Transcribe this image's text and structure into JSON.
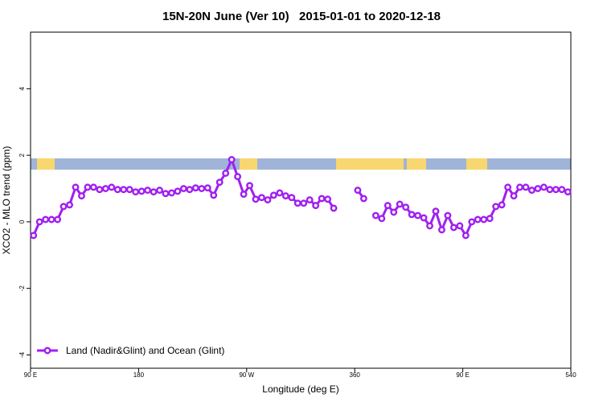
{
  "chart_data": {
    "type": "line",
    "title": "15N-20N June (Ver 10)   2015-01-01 to 2020-12-18",
    "x_label": "Longitude (deg E)",
    "y_label": "XCO2 - MLO trend (ppm)",
    "x": [
      92.5,
      97.5,
      102.5,
      107.5,
      112.5,
      117.5,
      122.5,
      127.5,
      132.5,
      137.5,
      142.5,
      147.5,
      152.5,
      157.5,
      162.5,
      167.5,
      172.5,
      177.5,
      182.5,
      187.5,
      192.5,
      197.5,
      202.5,
      207.5,
      212.5,
      217.5,
      222.5,
      227.5,
      232.5,
      237.5,
      242.5,
      247.5,
      252.5,
      257.5,
      262.5,
      267.5,
      272.5,
      277.5,
      282.5,
      287.5,
      292.5,
      297.5,
      302.5,
      307.5,
      312.5,
      317.5,
      322.5,
      327.5,
      332.5,
      337.5,
      342.5,
      347.5,
      352.5,
      357.5,
      362.5,
      367.5,
      372.5,
      377.5,
      382.5,
      387.5,
      392.5,
      397.5,
      402.5,
      407.5,
      412.5,
      417.5,
      422.5,
      427.5,
      432.5,
      437.5,
      442.5,
      447.5,
      452.5,
      457.5,
      462.5,
      467.5,
      472.5,
      477.5,
      482.5,
      487.5,
      492.5,
      497.5,
      502.5,
      507.5,
      512.5,
      517.5,
      522.5,
      527.5,
      532.5,
      537.5
    ],
    "series": [
      {
        "name": "Land (Nadir&Glint) and Ocean (Glint)",
        "color": "#a020f0",
        "values": [
          -0.41,
          0,
          0.07,
          0.07,
          0.07,
          0.46,
          0.51,
          1.04,
          0.78,
          1.04,
          1.04,
          0.97,
          1.0,
          1.04,
          0.97,
          0.97,
          0.97,
          0.9,
          0.92,
          0.95,
          0.9,
          0.95,
          0.85,
          0.87,
          0.92,
          1.0,
          0.97,
          1.02,
          1.0,
          1.02,
          0.8,
          1.19,
          1.46,
          1.87,
          1.36,
          0.83,
          1.09,
          0.68,
          0.73,
          0.66,
          0.8,
          0.87,
          0.78,
          0.73,
          0.56,
          0.56,
          0.66,
          0.49,
          0.7,
          0.68,
          0.41,
          null,
          null,
          null,
          0.95,
          0.7,
          null,
          0.19,
          0.1,
          0.49,
          0.29,
          0.53,
          0.44,
          0.22,
          0.19,
          0.12,
          -0.12,
          0.32,
          -0.24,
          0.19,
          -0.17,
          -0.12,
          -0.41,
          0,
          0.07,
          0.07,
          0.1,
          0.46,
          0.51,
          1.04,
          0.78,
          1.04,
          1.04,
          0.95,
          1.0,
          1.04,
          0.97,
          0.97,
          0.97,
          0.9
        ]
      }
    ],
    "xlim": [
      90,
      540
    ],
    "xticks": [
      {
        "value": 90,
        "label": "90 E"
      },
      180,
      {
        "value": 270,
        "label": "90 W"
      },
      360,
      {
        "value": 450,
        "label": "90 E"
      },
      540
    ],
    "ylim": [
      -4.4,
      5.7
    ],
    "yticks": [
      -4,
      -2,
      0,
      2,
      4
    ],
    "legend": "bottom-left"
  }
}
